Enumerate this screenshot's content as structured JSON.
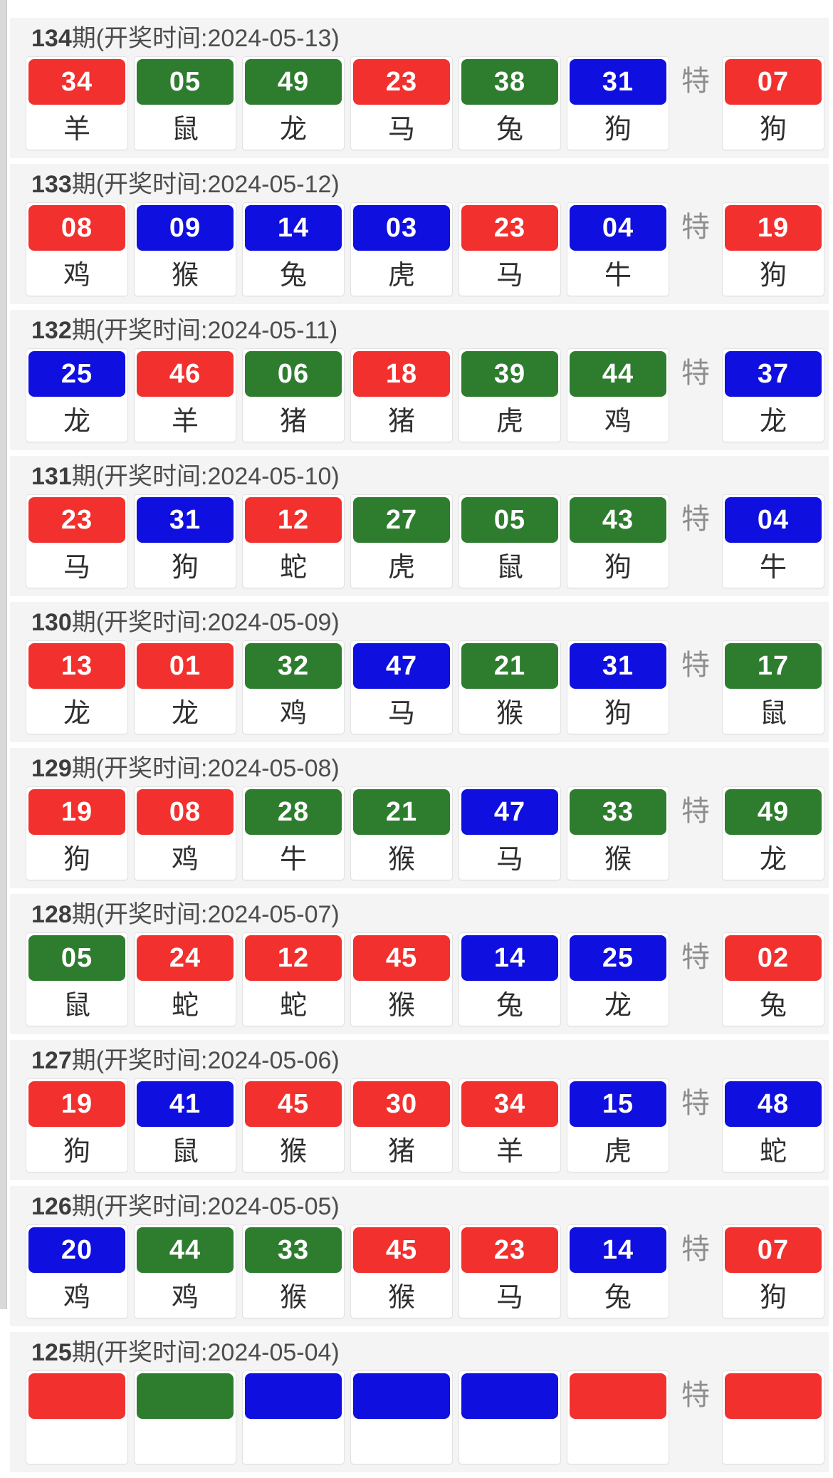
{
  "page": {
    "background": "#ffffff",
    "panel_background": "#f4f4f4",
    "scrollbar_color": "#d9d9d9"
  },
  "colors": {
    "red": "#f2302e",
    "green": "#2e7d2f",
    "blue": "#0f0fe0"
  },
  "special_label": "特",
  "draws": [
    {
      "period": "134",
      "title_rest": "期(开奖时间:2024-05-13)",
      "balls": [
        {
          "num": "34",
          "color": "red",
          "zodiac": "羊"
        },
        {
          "num": "05",
          "color": "green",
          "zodiac": "鼠"
        },
        {
          "num": "49",
          "color": "green",
          "zodiac": "龙"
        },
        {
          "num": "23",
          "color": "red",
          "zodiac": "马"
        },
        {
          "num": "38",
          "color": "green",
          "zodiac": "兔"
        },
        {
          "num": "31",
          "color": "blue",
          "zodiac": "狗"
        }
      ],
      "special": {
        "num": "07",
        "color": "red",
        "zodiac": "狗"
      }
    },
    {
      "period": "133",
      "title_rest": "期(开奖时间:2024-05-12)",
      "balls": [
        {
          "num": "08",
          "color": "red",
          "zodiac": "鸡"
        },
        {
          "num": "09",
          "color": "blue",
          "zodiac": "猴"
        },
        {
          "num": "14",
          "color": "blue",
          "zodiac": "兔"
        },
        {
          "num": "03",
          "color": "blue",
          "zodiac": "虎"
        },
        {
          "num": "23",
          "color": "red",
          "zodiac": "马"
        },
        {
          "num": "04",
          "color": "blue",
          "zodiac": "牛"
        }
      ],
      "special": {
        "num": "19",
        "color": "red",
        "zodiac": "狗"
      }
    },
    {
      "period": "132",
      "title_rest": "期(开奖时间:2024-05-11)",
      "balls": [
        {
          "num": "25",
          "color": "blue",
          "zodiac": "龙"
        },
        {
          "num": "46",
          "color": "red",
          "zodiac": "羊"
        },
        {
          "num": "06",
          "color": "green",
          "zodiac": "猪"
        },
        {
          "num": "18",
          "color": "red",
          "zodiac": "猪"
        },
        {
          "num": "39",
          "color": "green",
          "zodiac": "虎"
        },
        {
          "num": "44",
          "color": "green",
          "zodiac": "鸡"
        }
      ],
      "special": {
        "num": "37",
        "color": "blue",
        "zodiac": "龙"
      }
    },
    {
      "period": "131",
      "title_rest": "期(开奖时间:2024-05-10)",
      "balls": [
        {
          "num": "23",
          "color": "red",
          "zodiac": "马"
        },
        {
          "num": "31",
          "color": "blue",
          "zodiac": "狗"
        },
        {
          "num": "12",
          "color": "red",
          "zodiac": "蛇"
        },
        {
          "num": "27",
          "color": "green",
          "zodiac": "虎"
        },
        {
          "num": "05",
          "color": "green",
          "zodiac": "鼠"
        },
        {
          "num": "43",
          "color": "green",
          "zodiac": "狗"
        }
      ],
      "special": {
        "num": "04",
        "color": "blue",
        "zodiac": "牛"
      }
    },
    {
      "period": "130",
      "title_rest": "期(开奖时间:2024-05-09)",
      "balls": [
        {
          "num": "13",
          "color": "red",
          "zodiac": "龙"
        },
        {
          "num": "01",
          "color": "red",
          "zodiac": "龙"
        },
        {
          "num": "32",
          "color": "green",
          "zodiac": "鸡"
        },
        {
          "num": "47",
          "color": "blue",
          "zodiac": "马"
        },
        {
          "num": "21",
          "color": "green",
          "zodiac": "猴"
        },
        {
          "num": "31",
          "color": "blue",
          "zodiac": "狗"
        }
      ],
      "special": {
        "num": "17",
        "color": "green",
        "zodiac": "鼠"
      }
    },
    {
      "period": "129",
      "title_rest": "期(开奖时间:2024-05-08)",
      "balls": [
        {
          "num": "19",
          "color": "red",
          "zodiac": "狗"
        },
        {
          "num": "08",
          "color": "red",
          "zodiac": "鸡"
        },
        {
          "num": "28",
          "color": "green",
          "zodiac": "牛"
        },
        {
          "num": "21",
          "color": "green",
          "zodiac": "猴"
        },
        {
          "num": "47",
          "color": "blue",
          "zodiac": "马"
        },
        {
          "num": "33",
          "color": "green",
          "zodiac": "猴"
        }
      ],
      "special": {
        "num": "49",
        "color": "green",
        "zodiac": "龙"
      }
    },
    {
      "period": "128",
      "title_rest": "期(开奖时间:2024-05-07)",
      "balls": [
        {
          "num": "05",
          "color": "green",
          "zodiac": "鼠"
        },
        {
          "num": "24",
          "color": "red",
          "zodiac": "蛇"
        },
        {
          "num": "12",
          "color": "red",
          "zodiac": "蛇"
        },
        {
          "num": "45",
          "color": "red",
          "zodiac": "猴"
        },
        {
          "num": "14",
          "color": "blue",
          "zodiac": "兔"
        },
        {
          "num": "25",
          "color": "blue",
          "zodiac": "龙"
        }
      ],
      "special": {
        "num": "02",
        "color": "red",
        "zodiac": "兔"
      }
    },
    {
      "period": "127",
      "title_rest": "期(开奖时间:2024-05-06)",
      "balls": [
        {
          "num": "19",
          "color": "red",
          "zodiac": "狗"
        },
        {
          "num": "41",
          "color": "blue",
          "zodiac": "鼠"
        },
        {
          "num": "45",
          "color": "red",
          "zodiac": "猴"
        },
        {
          "num": "30",
          "color": "red",
          "zodiac": "猪"
        },
        {
          "num": "34",
          "color": "red",
          "zodiac": "羊"
        },
        {
          "num": "15",
          "color": "blue",
          "zodiac": "虎"
        }
      ],
      "special": {
        "num": "48",
        "color": "blue",
        "zodiac": "蛇"
      }
    },
    {
      "period": "126",
      "title_rest": "期(开奖时间:2024-05-05)",
      "balls": [
        {
          "num": "20",
          "color": "blue",
          "zodiac": "鸡"
        },
        {
          "num": "44",
          "color": "green",
          "zodiac": "鸡"
        },
        {
          "num": "33",
          "color": "green",
          "zodiac": "猴"
        },
        {
          "num": "45",
          "color": "red",
          "zodiac": "猴"
        },
        {
          "num": "23",
          "color": "red",
          "zodiac": "马"
        },
        {
          "num": "14",
          "color": "blue",
          "zodiac": "兔"
        }
      ],
      "special": {
        "num": "07",
        "color": "red",
        "zodiac": "狗"
      }
    },
    {
      "period": "125",
      "title_rest": "期(开奖时间:2024-05-04)",
      "balls": [
        {
          "num": "",
          "color": "red",
          "zodiac": ""
        },
        {
          "num": "",
          "color": "green",
          "zodiac": ""
        },
        {
          "num": "",
          "color": "blue",
          "zodiac": ""
        },
        {
          "num": "",
          "color": "blue",
          "zodiac": ""
        },
        {
          "num": "",
          "color": "blue",
          "zodiac": ""
        },
        {
          "num": "",
          "color": "red",
          "zodiac": ""
        }
      ],
      "special": {
        "num": "",
        "color": "red",
        "zodiac": ""
      }
    }
  ]
}
